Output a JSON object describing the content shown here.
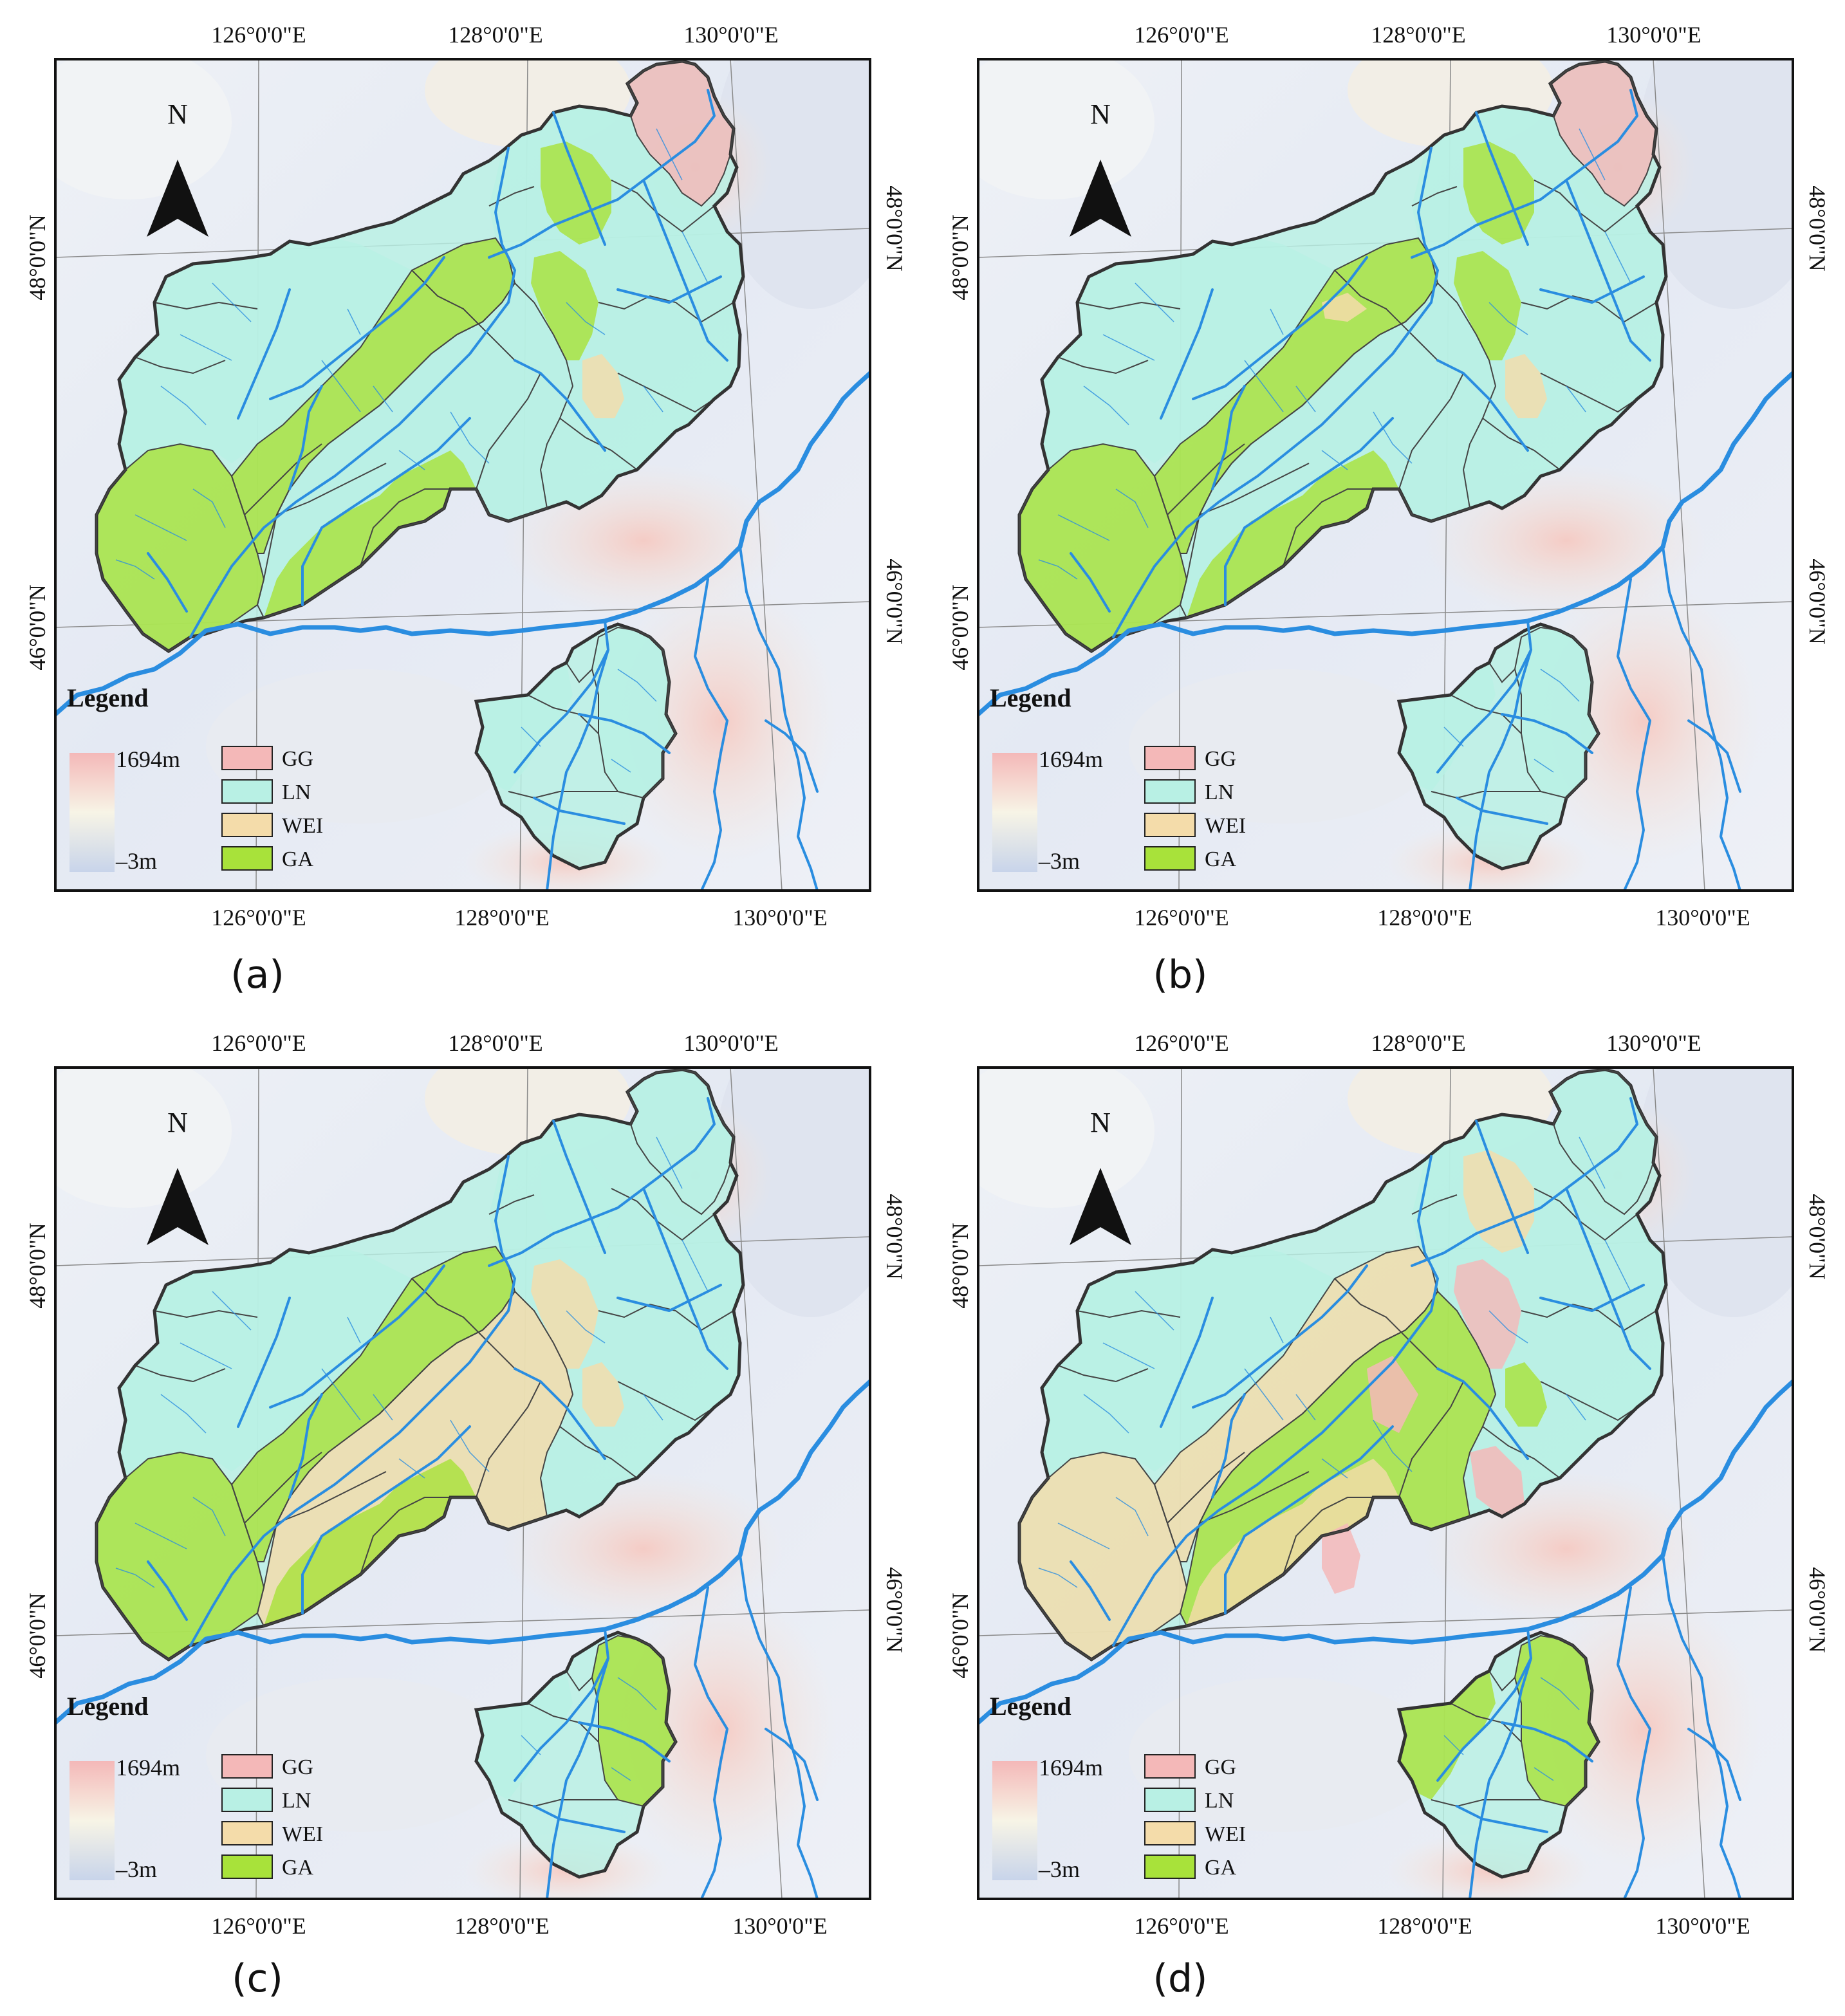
{
  "panels": [
    {
      "caption": "(a)"
    },
    {
      "caption": "(b)"
    },
    {
      "caption": "(c)"
    },
    {
      "caption": "(d)"
    }
  ],
  "axes": {
    "lon_labels": [
      "126°0'0\"E",
      "128°0'0\"E",
      "130°0'0\"E"
    ],
    "lat_labels": [
      "48°0'0\"N",
      "46°0'0\"N"
    ]
  },
  "north_arrow": {
    "label": "N",
    "icon": "north-arrow-icon"
  },
  "legend": {
    "title": "Legend",
    "elevation_max": "1694m",
    "elevation_min": "–3m",
    "classes": [
      {
        "label": "GG",
        "color": "#f4b8b8"
      },
      {
        "label": "LN",
        "color": "#b8f0e4"
      },
      {
        "label": "WEI",
        "color": "#f4dcaa"
      },
      {
        "label": "GA",
        "color": "#a8e23a"
      }
    ]
  },
  "colors": {
    "river": "#2a8de0",
    "basin_outline": "#333333",
    "frame": "#111111",
    "grid": "#8a8a8a"
  }
}
